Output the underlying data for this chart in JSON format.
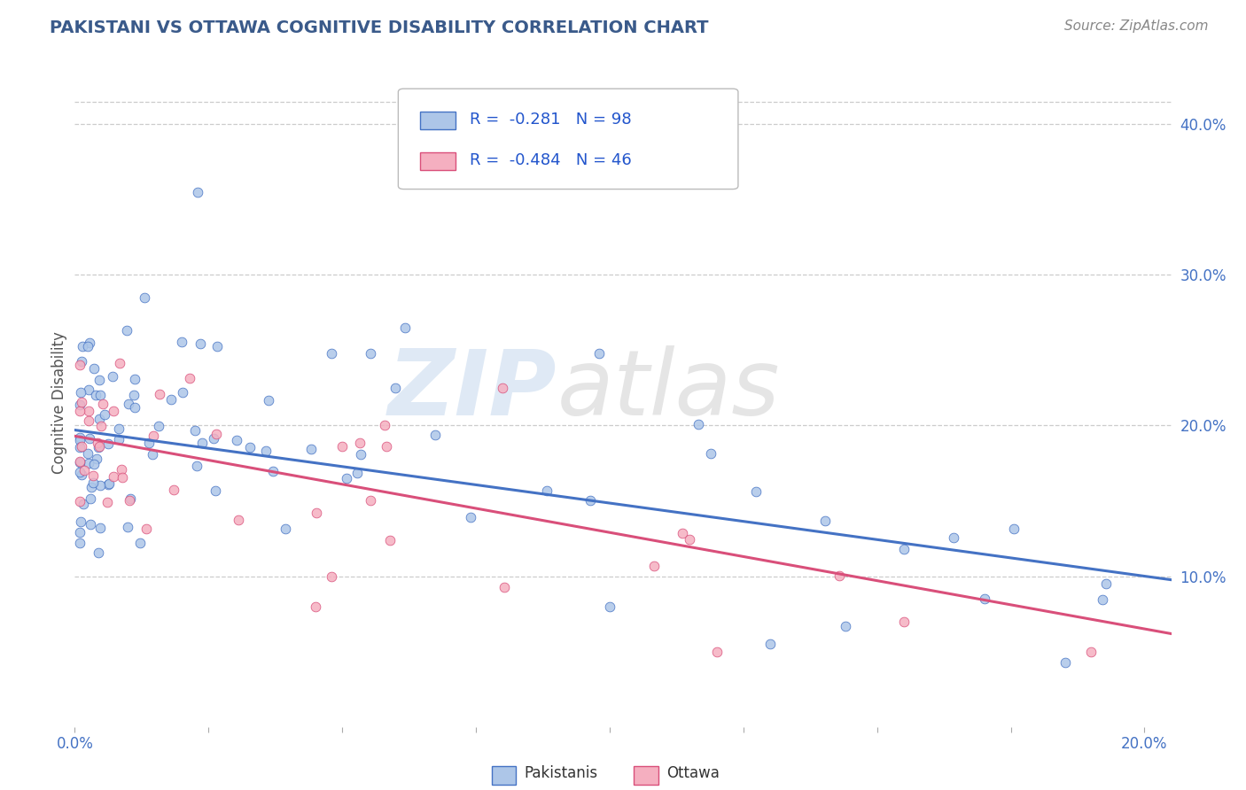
{
  "title": "PAKISTANI VS OTTAWA COGNITIVE DISABILITY CORRELATION CHART",
  "source": "Source: ZipAtlas.com",
  "ylabel": "Cognitive Disability",
  "xlim": [
    0.0,
    0.205
  ],
  "ylim": [
    0.0,
    0.43
  ],
  "xticks": [
    0.0,
    0.025,
    0.05,
    0.075,
    0.1,
    0.125,
    0.15,
    0.175,
    0.2
  ],
  "xticklabels": [
    "0.0%",
    "",
    "",
    "",
    "",
    "",
    "",
    "",
    "20.0%"
  ],
  "yticks_right": [
    0.1,
    0.2,
    0.3,
    0.4
  ],
  "ytick_labels_right": [
    "10.0%",
    "20.0%",
    "30.0%",
    "40.0%"
  ],
  "pakistanis_r": -0.281,
  "pakistanis_n": 98,
  "ottawa_r": -0.484,
  "ottawa_n": 46,
  "pakistanis_color": "#adc6e8",
  "ottawa_color": "#f5afc0",
  "pakistanis_line_color": "#4472c4",
  "ottawa_line_color": "#d94f7a",
  "title_color": "#3a5a8a",
  "tick_color": "#4472c4",
  "grid_color": "#cccccc",
  "watermark_zip_color": "#c5d8ee",
  "watermark_atlas_color": "#d0d0d0",
  "source_color": "#888888",
  "ylabel_color": "#555555",
  "legend_text_color": "#2255cc",
  "legend_border_color": "#bbbbbb",
  "seed_pak": 77,
  "seed_ott": 88
}
